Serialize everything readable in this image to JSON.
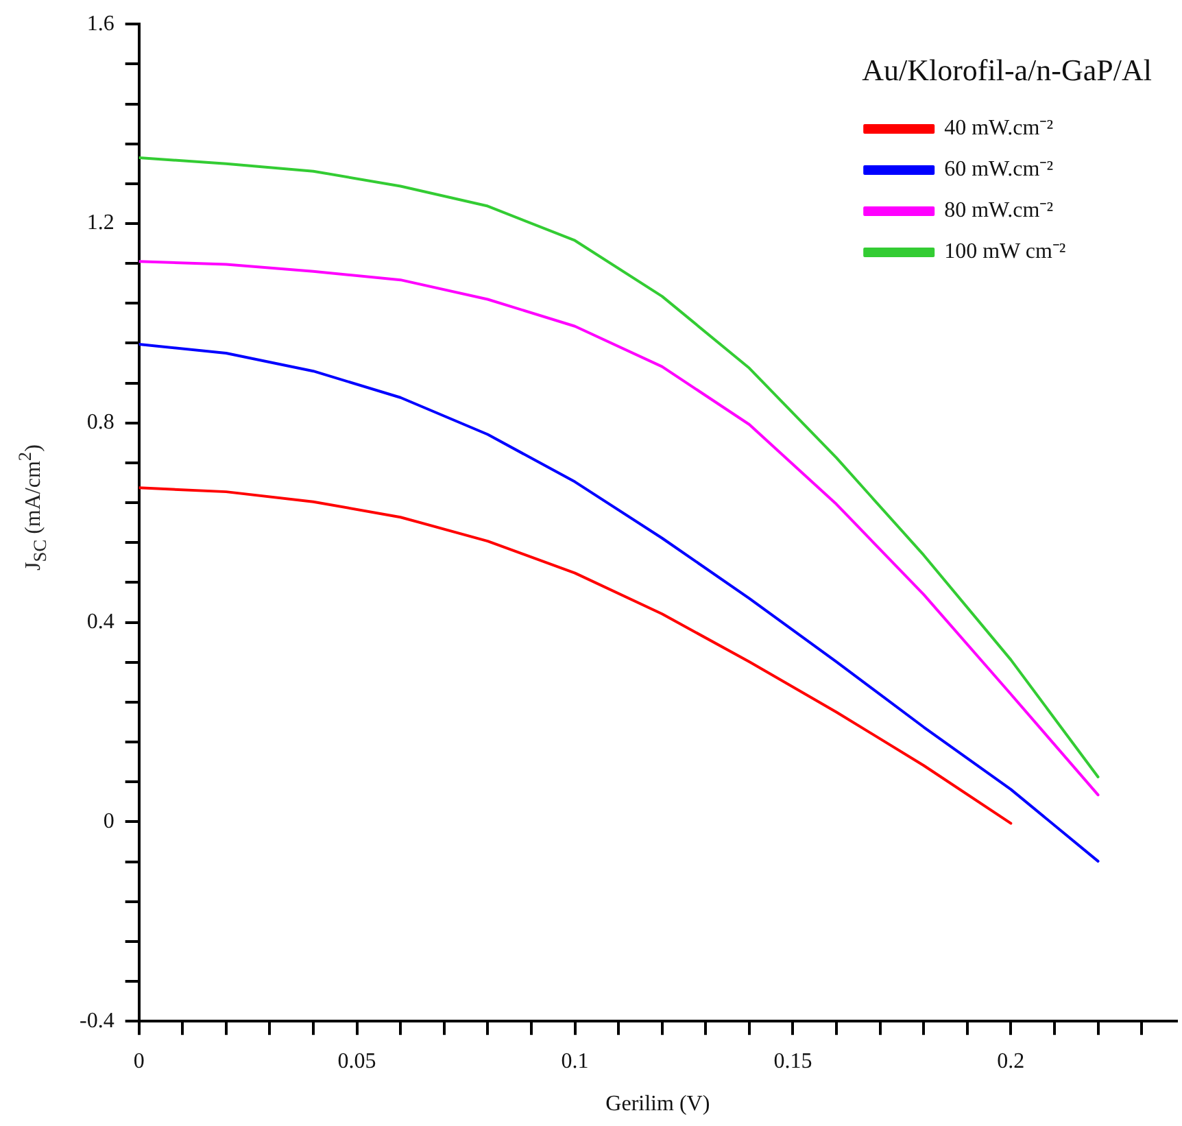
{
  "chart_data": {
    "type": "line",
    "xlabel": "Gerilim (V)",
    "ylabel": "J$_{SC}$ (mA/cm$^{2}$)",
    "legend_title": "Au/Klorofil-a/n-GaP/Al",
    "x": [
      0,
      0.02,
      0.04,
      0.06,
      0.08,
      0.1,
      0.12,
      0.14,
      0.16,
      0.18,
      0.2,
      0.22
    ],
    "series": [
      {
        "name": "40 mW.cm⁻²",
        "color": "#ff0000",
        "values": [
          0.67,
          0.662,
          0.642,
          0.611,
          0.563,
          0.499,
          0.417,
          0.321,
          0.22,
          0.113,
          -0.003,
          null
        ]
      },
      {
        "name": "60 mW.cm⁻²",
        "color": "#0000ff",
        "values": [
          0.958,
          0.94,
          0.904,
          0.851,
          0.777,
          0.682,
          0.569,
          0.448,
          0.321,
          0.19,
          0.065,
          -0.079
        ]
      },
      {
        "name": "80 mW.cm⁻²",
        "color": "#ff00ff",
        "values": [
          1.124,
          1.118,
          1.104,
          1.087,
          1.048,
          0.994,
          0.913,
          0.797,
          0.637,
          0.456,
          0.256,
          0.054
        ]
      },
      {
        "name": "100 mW cm⁻²",
        "color": "#33cc33",
        "values": [
          1.332,
          1.32,
          1.305,
          1.275,
          1.235,
          1.166,
          1.054,
          0.91,
          0.73,
          0.535,
          0.325,
          0.09
        ]
      }
    ],
    "xlim": [
      0,
      0.238
    ],
    "xticks": [
      0,
      {
        "value": 0.01,
        "label": null
      },
      {
        "value": 0.02,
        "label": null
      },
      {
        "value": 0.03,
        "label": null
      },
      {
        "value": 0.04,
        "label": null
      },
      0.05,
      {
        "value": 0.06,
        "label": null
      },
      {
        "value": 0.07,
        "label": null
      },
      {
        "value": 0.08,
        "label": null
      },
      {
        "value": 0.09,
        "label": null
      },
      0.1,
      {
        "value": 0.11,
        "label": null
      },
      {
        "value": 0.12,
        "label": null
      },
      {
        "value": 0.13,
        "label": null
      },
      {
        "value": 0.14,
        "label": null
      },
      0.15,
      {
        "value": 0.16,
        "label": null
      },
      {
        "value": 0.17,
        "label": null
      },
      {
        "value": 0.18,
        "label": null
      },
      {
        "value": 0.19,
        "label": null
      },
      0.2,
      {
        "value": 0.21,
        "label": null
      },
      {
        "value": 0.22,
        "label": null
      },
      {
        "value": 0.23,
        "label": null
      }
    ],
    "ylim": [
      -0.4,
      1.6
    ],
    "yticks": [
      -0.4,
      {
        "value": -0.32,
        "label": null
      },
      {
        "value": -0.24,
        "label": null
      },
      {
        "value": -0.16,
        "label": null
      },
      {
        "value": -0.08,
        "label": null
      },
      0,
      {
        "value": 0.08,
        "label": null
      },
      {
        "value": 0.16,
        "label": null
      },
      {
        "value": 0.24,
        "label": null
      },
      {
        "value": 0.32,
        "label": null
      },
      0.4,
      {
        "value": 0.48,
        "label": null
      },
      {
        "value": 0.56,
        "label": null
      },
      {
        "value": 0.64,
        "label": null
      },
      {
        "value": 0.72,
        "label": null
      },
      0.8,
      {
        "value": 0.88,
        "label": null
      },
      {
        "value": 0.96,
        "label": null
      },
      {
        "value": 1.04,
        "label": null
      },
      {
        "value": 1.12,
        "label": null
      },
      1.2,
      {
        "value": 1.28,
        "label": null
      },
      {
        "value": 1.36,
        "label": null
      },
      {
        "value": 1.44,
        "label": null
      },
      {
        "value": 1.52,
        "label": null
      },
      1.6
    ],
    "legend": "top right",
    "line_style": "solid",
    "marker": "none"
  }
}
